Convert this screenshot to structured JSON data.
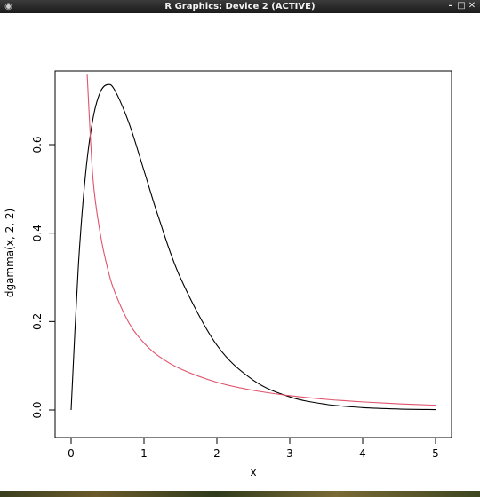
{
  "window": {
    "title": "R Graphics: Device 2 (ACTIVE)",
    "app_icon": "r-logo-icon",
    "buttons": {
      "minimize_icon": "minimize-icon",
      "maximize_icon": "maximize-icon",
      "close_icon": "close-icon"
    }
  },
  "chart_data": {
    "type": "line",
    "xlabel": "x",
    "ylabel": "dgamma(x, 2, 2)",
    "xlim": [
      0,
      5
    ],
    "ylim": [
      0,
      0.75
    ],
    "x_ticks": [
      "0",
      "1",
      "2",
      "3",
      "4",
      "5"
    ],
    "y_ticks": [
      "0.0",
      "0.2",
      "0.4",
      "0.6"
    ],
    "grid": false,
    "series": [
      {
        "color": "#000000",
        "x": [
          0,
          0.1,
          0.2,
          0.3,
          0.4,
          0.5,
          0.6,
          0.8,
          1.0,
          1.2,
          1.5,
          2.0,
          2.5,
          3.0,
          3.5,
          4.0,
          4.5,
          5.0
        ],
        "values": [
          0,
          0.3275,
          0.5363,
          0.6586,
          0.7189,
          0.7358,
          0.7229,
          0.6459,
          0.5413,
          0.4355,
          0.2987,
          0.1465,
          0.0674,
          0.0297,
          0.0128,
          0.0054,
          0.0022,
          0.0009
        ]
      },
      {
        "color": "#df536b",
        "x": [
          0.22,
          0.3,
          0.4,
          0.5,
          0.6,
          0.8,
          1.0,
          1.2,
          1.5,
          2.0,
          2.5,
          3.0,
          3.5,
          4.0,
          4.5,
          5.0
        ],
        "values": [
          0.76,
          0.5236,
          0.3989,
          0.3205,
          0.2666,
          0.1952,
          0.1516,
          0.122,
          0.093,
          0.0627,
          0.0444,
          0.0324,
          0.0241,
          0.0183,
          0.014,
          0.0108
        ]
      }
    ]
  }
}
